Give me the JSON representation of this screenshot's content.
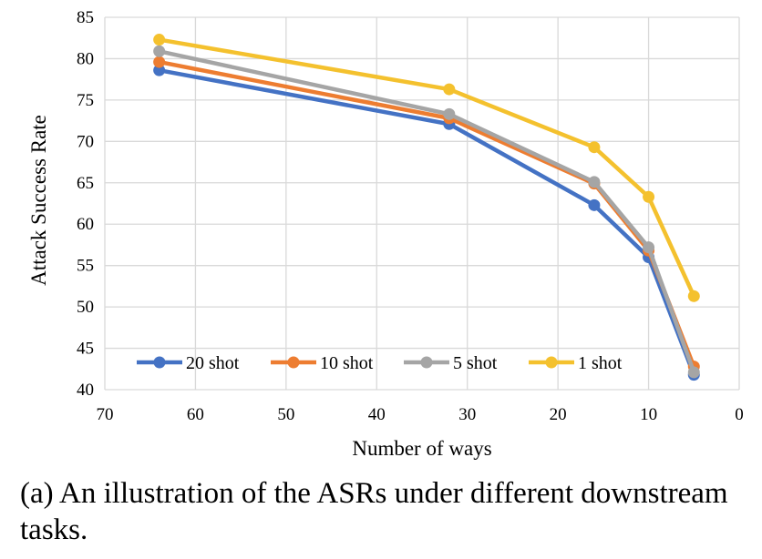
{
  "chart_data": {
    "type": "line",
    "xlabel": "Number of ways",
    "ylabel": "Attack Success Rate",
    "xlim": [
      70,
      0
    ],
    "ylim": [
      40,
      85
    ],
    "x_ticks": [
      70,
      60,
      50,
      40,
      30,
      20,
      10,
      0
    ],
    "y_ticks": [
      40,
      45,
      50,
      55,
      60,
      65,
      70,
      75,
      80,
      85
    ],
    "x_reversed": true,
    "grid": true,
    "legend_position": "bottom-inside",
    "x": [
      64,
      32,
      16,
      10,
      5
    ],
    "series": [
      {
        "name": "20 shot",
        "color": "#4472C4",
        "values": [
          78.6,
          72.1,
          62.3,
          56.0,
          41.8
        ]
      },
      {
        "name": "10 shot",
        "color": "#ED7D31",
        "values": [
          79.6,
          72.8,
          64.9,
          56.8,
          42.8
        ]
      },
      {
        "name": "5 shot",
        "color": "#A5A5A5",
        "values": [
          80.9,
          73.3,
          65.1,
          57.2,
          42.1
        ]
      },
      {
        "name": "1 shot",
        "color": "#F4C12E",
        "values": [
          82.3,
          76.3,
          69.3,
          63.3,
          51.3
        ]
      }
    ]
  },
  "caption": "(a) An illustration of the ASRs under different downstream tasks."
}
